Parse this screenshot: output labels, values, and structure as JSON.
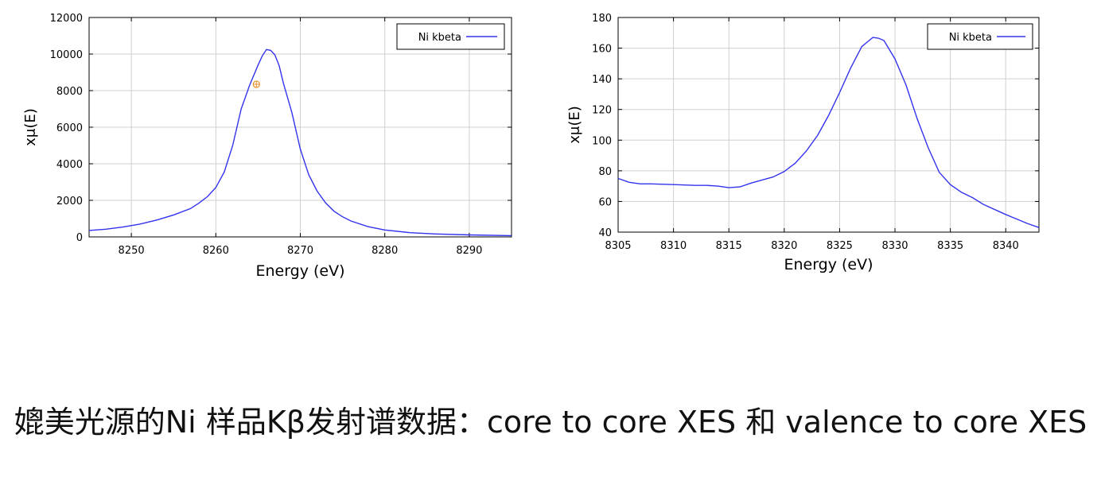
{
  "caption": "媲美光源的Ni 样品Kβ发射谱数据：core to core XES 和 valence to core XES",
  "chart_data": [
    {
      "type": "line",
      "xlabel": "Energy    (eV)",
      "ylabel": "xμ(E)",
      "xlim": [
        8245,
        8295
      ],
      "ylim": [
        0,
        12000
      ],
      "xticks": [
        8250,
        8260,
        8270,
        8280,
        8290
      ],
      "yticks": [
        0,
        2000,
        4000,
        6000,
        8000,
        10000,
        12000
      ],
      "grid": true,
      "legend_position": "top-right",
      "series": [
        {
          "name": "Ni  kbeta",
          "color": "#3333ee",
          "x": [
            8245,
            8247,
            8249,
            8251,
            8253,
            8255,
            8257,
            8258,
            8259,
            8260,
            8261,
            8262,
            8263,
            8264,
            8265,
            8265.5,
            8266,
            8266.5,
            8267,
            8267.5,
            8268,
            8269,
            8270,
            8271,
            8272,
            8273,
            8274,
            8275,
            8276,
            8278,
            8280,
            8283,
            8286,
            8290,
            8295
          ],
          "y": [
            350,
            420,
            540,
            700,
            920,
            1200,
            1550,
            1850,
            2200,
            2700,
            3550,
            5000,
            7000,
            8300,
            9400,
            9900,
            10250,
            10200,
            9950,
            9350,
            8400,
            6800,
            4800,
            3400,
            2500,
            1850,
            1400,
            1100,
            870,
            560,
            380,
            230,
            160,
            110,
            70
          ]
        }
      ],
      "annotations": [
        {
          "type": "marker",
          "x": 8264.8,
          "y": 8350,
          "color": "#e8902a"
        }
      ]
    },
    {
      "type": "line",
      "xlabel": "Energy    (eV)",
      "ylabel": "xμ(E)",
      "xlim": [
        8305,
        8343
      ],
      "ylim": [
        40,
        180
      ],
      "xticks": [
        8305,
        8310,
        8315,
        8320,
        8325,
        8330,
        8335,
        8340
      ],
      "yticks": [
        40,
        60,
        80,
        100,
        120,
        140,
        160,
        180
      ],
      "grid": true,
      "legend_position": "top-right",
      "series": [
        {
          "name": "Ni  kbeta",
          "color": "#3333ee",
          "x": [
            8305,
            8306,
            8307,
            8308,
            8310,
            8312,
            8313,
            8314,
            8315,
            8316,
            8317,
            8318,
            8319,
            8320,
            8321,
            8322,
            8323,
            8324,
            8325,
            8326,
            8327,
            8328,
            8328.5,
            8329,
            8330,
            8331,
            8332,
            8333,
            8334,
            8335,
            8336,
            8337,
            8338,
            8340,
            8341,
            8342,
            8343
          ],
          "y": [
            75,
            72.5,
            71.5,
            71.5,
            71,
            70.5,
            70.5,
            70,
            69,
            69.5,
            72,
            74,
            76,
            79.5,
            85,
            93,
            103,
            116,
            131,
            147,
            161,
            167,
            166.5,
            165,
            153,
            136,
            114,
            95,
            79,
            71,
            66,
            62.5,
            58,
            51.5,
            48.5,
            45.5,
            43
          ]
        }
      ]
    }
  ]
}
